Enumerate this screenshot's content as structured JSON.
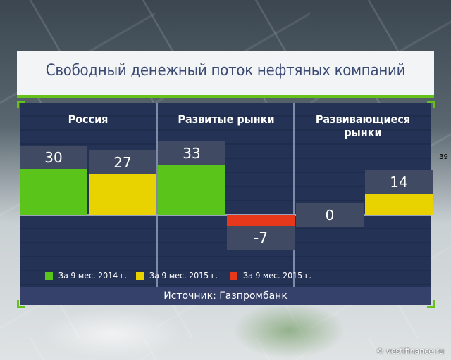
{
  "title": "Свободный денежный поток нефтяных компаний",
  "source": "Источник: Газпромбанк",
  "watermark": "© vestifinance.ru",
  "side_text": ".39",
  "colors": {
    "series_2014": "#5ac41a",
    "series_2015_positive": "#e8d300",
    "series_2015_negative": "#e8381b",
    "accent_line": "#66c21b",
    "panel_background": "#243355",
    "title_text": "#3b4a73"
  },
  "legend": [
    {
      "label": "За 9 мес. 2014 г.",
      "color": "#5ac41a"
    },
    {
      "label": "За 9 мес. 2015 г.",
      "color": "#e8d300"
    },
    {
      "label": "За 9 мес. 2015 г.",
      "color": "#e8381b"
    }
  ],
  "chart_data": {
    "type": "bar",
    "categories": [
      "Россия",
      "Развитые рынки",
      "Развивающиеся рынки"
    ],
    "series": [
      {
        "name": "За 9 мес. 2014 г.",
        "values": [
          30,
          33,
          0
        ]
      },
      {
        "name": "За 9 мес. 2015 г.",
        "values": [
          27,
          -7,
          14
        ]
      }
    ],
    "value_labels": [
      [
        "30",
        "27"
      ],
      [
        "33",
        "-7"
      ],
      [
        "0",
        "14"
      ]
    ],
    "grid": true,
    "legend_position": "bottom"
  }
}
